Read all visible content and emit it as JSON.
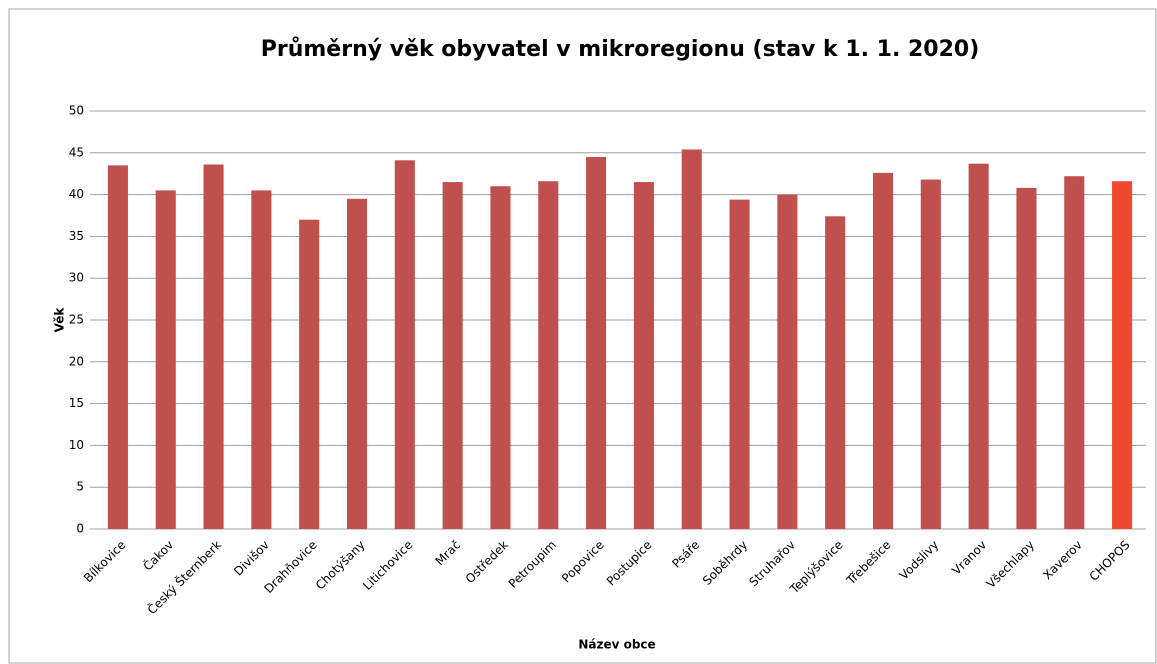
{
  "chart_data": {
    "type": "bar",
    "title": "Průměrný věk obyvatel v mikroregionu (stav k 1. 1. 2020)",
    "x_label": "Název obce",
    "y_label": "Věk",
    "categories": [
      "Bílkovice",
      "Čakov",
      "Český Šternberk",
      "Divišov",
      "Drahňovice",
      "Chotýšany",
      "Litichovice",
      "Mrač",
      "Ostředek",
      "Petroupim",
      "Popovice",
      "Postupice",
      "Psáře",
      "Soběhrdy",
      "Struhařov",
      "Teplýšovice",
      "Třebešice",
      "Vodslivy",
      "Vranov",
      "Všechlapy",
      "Xaverov",
      "CHOPOS"
    ],
    "values": [
      43.5,
      40.5,
      43.6,
      40.5,
      37.0,
      39.5,
      44.1,
      41.5,
      41.0,
      41.6,
      44.5,
      41.5,
      45.4,
      39.4,
      40.0,
      37.4,
      42.6,
      41.8,
      43.7,
      40.8,
      42.2,
      41.6
    ],
    "colors": [
      "#c0504d",
      "#c0504d",
      "#c0504d",
      "#c0504d",
      "#c0504d",
      "#c0504d",
      "#c0504d",
      "#c0504d",
      "#c0504d",
      "#c0504d",
      "#c0504d",
      "#c0504d",
      "#c0504d",
      "#c0504d",
      "#c0504d",
      "#c0504d",
      "#c0504d",
      "#c0504d",
      "#c0504d",
      "#c0504d",
      "#c0504d",
      "#f04a2e"
    ],
    "ylim": [
      0,
      50
    ],
    "yticks": [
      0,
      5,
      10,
      15,
      20,
      25,
      30,
      35,
      40,
      45,
      50
    ],
    "grid": true
  }
}
